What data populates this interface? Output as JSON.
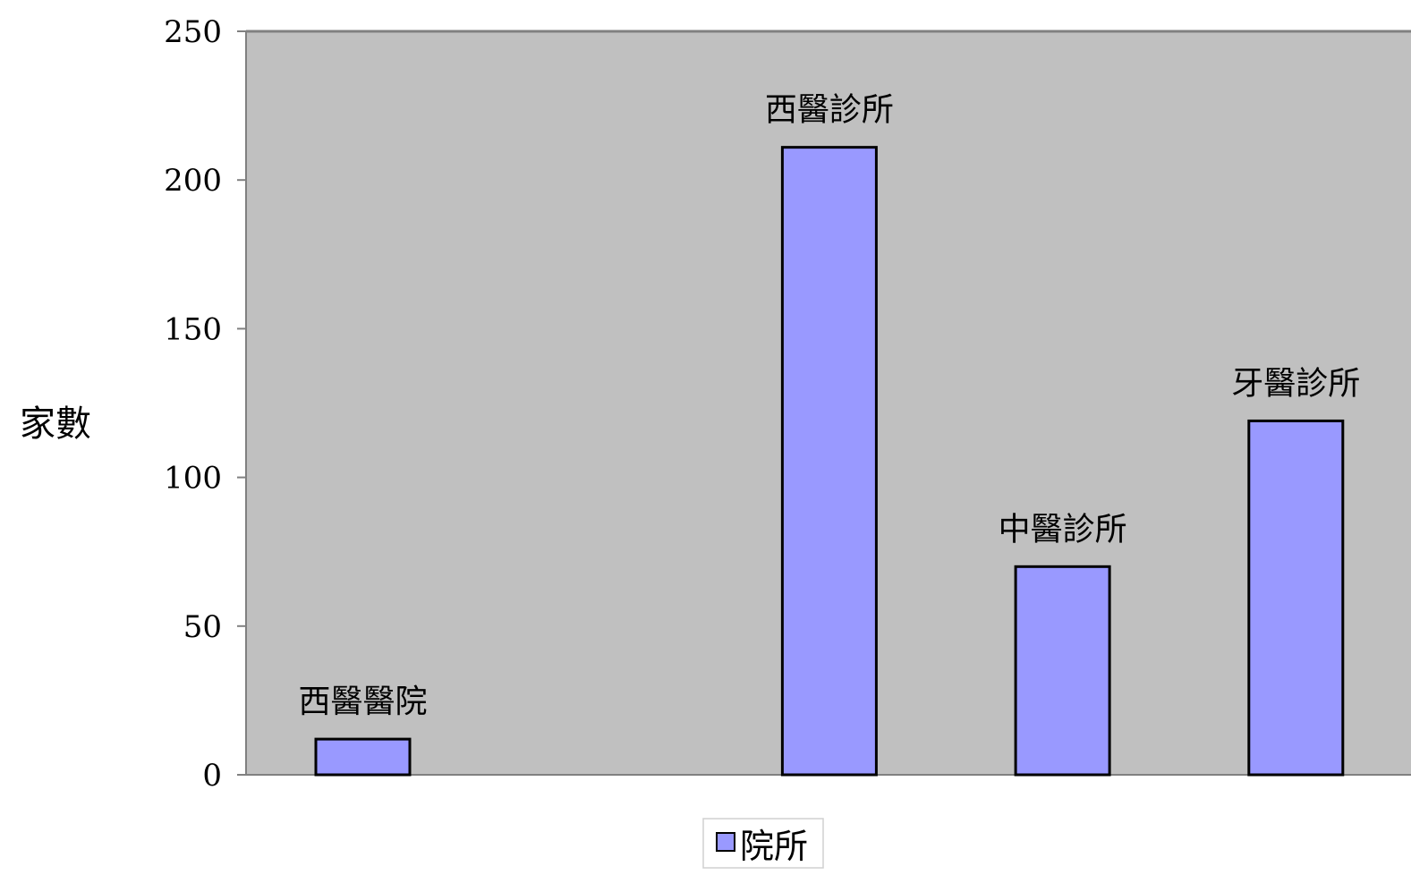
{
  "chart_data": {
    "type": "bar",
    "categories": [
      "西醫醫院",
      "",
      "西醫診所",
      "中醫診所",
      "牙醫診所"
    ],
    "series": [
      {
        "name": "院所",
        "values": [
          12,
          null,
          211,
          70,
          119
        ]
      }
    ],
    "data_labels": [
      "西醫醫院",
      "",
      "西醫診所",
      "中醫診所",
      "牙醫診所"
    ],
    "ylabel": "家數",
    "xlabel": "",
    "ylim": [
      0,
      250
    ],
    "yticks": [
      0,
      50,
      100,
      150,
      200,
      250
    ],
    "grid": false,
    "legend": "bottom-center",
    "colors": {
      "bar": "#9999ff",
      "bar_border": "#000000",
      "plot_bg": "#c0c0c0",
      "axis": "#808080"
    }
  }
}
